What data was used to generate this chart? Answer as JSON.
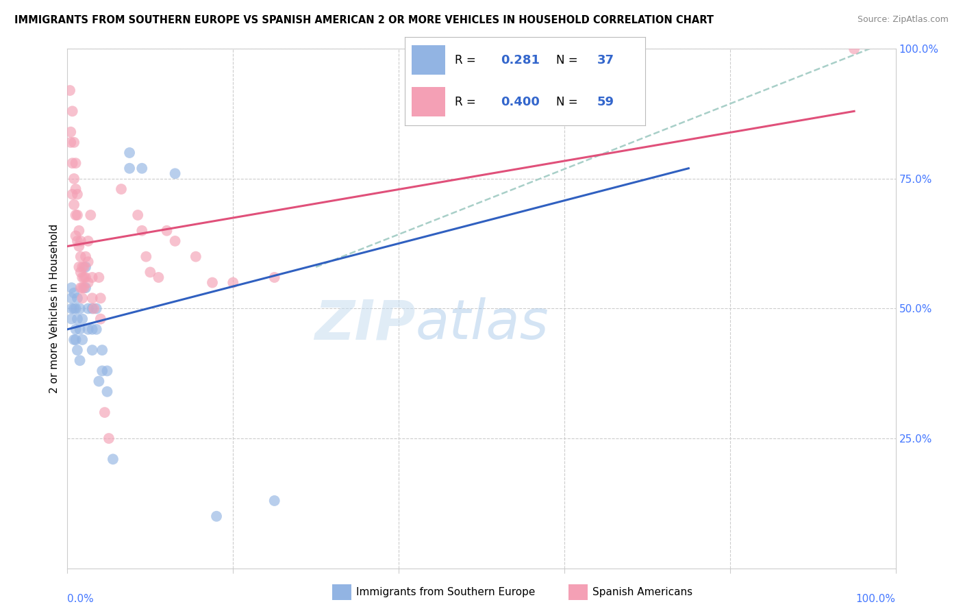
{
  "title": "IMMIGRANTS FROM SOUTHERN EUROPE VS SPANISH AMERICAN 2 OR MORE VEHICLES IN HOUSEHOLD CORRELATION CHART",
  "source": "Source: ZipAtlas.com",
  "ylabel": "2 or more Vehicles in Household",
  "ytick_positions": [
    0.0,
    0.25,
    0.5,
    0.75,
    1.0
  ],
  "xlim": [
    0,
    1.0
  ],
  "ylim": [
    0,
    1.0
  ],
  "watermark_zip": "ZIP",
  "watermark_atlas": "atlas",
  "legend_blue_r": "0.281",
  "legend_blue_n": "37",
  "legend_pink_r": "0.400",
  "legend_pink_n": "59",
  "blue_color": "#92b4e3",
  "pink_color": "#f4a0b5",
  "blue_line_color": "#3060c0",
  "pink_line_color": "#e0507a",
  "dashed_line_color": "#a8cfc8",
  "blue_scatter": [
    [
      0.005,
      0.48
    ],
    [
      0.005,
      0.52
    ],
    [
      0.005,
      0.5
    ],
    [
      0.005,
      0.54
    ],
    [
      0.008,
      0.44
    ],
    [
      0.008,
      0.5
    ],
    [
      0.008,
      0.53
    ],
    [
      0.01,
      0.46
    ],
    [
      0.01,
      0.5
    ],
    [
      0.01,
      0.44
    ],
    [
      0.012,
      0.42
    ],
    [
      0.012,
      0.48
    ],
    [
      0.012,
      0.52
    ],
    [
      0.015,
      0.4
    ],
    [
      0.015,
      0.46
    ],
    [
      0.015,
      0.5
    ],
    [
      0.018,
      0.44
    ],
    [
      0.018,
      0.48
    ],
    [
      0.022,
      0.54
    ],
    [
      0.022,
      0.58
    ],
    [
      0.025,
      0.5
    ],
    [
      0.025,
      0.46
    ],
    [
      0.03,
      0.5
    ],
    [
      0.03,
      0.46
    ],
    [
      0.03,
      0.42
    ],
    [
      0.035,
      0.5
    ],
    [
      0.035,
      0.46
    ],
    [
      0.038,
      0.36
    ],
    [
      0.042,
      0.42
    ],
    [
      0.042,
      0.38
    ],
    [
      0.048,
      0.38
    ],
    [
      0.048,
      0.34
    ],
    [
      0.055,
      0.21
    ],
    [
      0.075,
      0.77
    ],
    [
      0.075,
      0.8
    ],
    [
      0.09,
      0.77
    ],
    [
      0.13,
      0.76
    ],
    [
      0.18,
      0.1
    ],
    [
      0.25,
      0.13
    ]
  ],
  "pink_scatter": [
    [
      0.003,
      0.92
    ],
    [
      0.004,
      0.84
    ],
    [
      0.004,
      0.82
    ],
    [
      0.006,
      0.88
    ],
    [
      0.006,
      0.78
    ],
    [
      0.006,
      0.72
    ],
    [
      0.008,
      0.82
    ],
    [
      0.008,
      0.75
    ],
    [
      0.008,
      0.7
    ],
    [
      0.01,
      0.78
    ],
    [
      0.01,
      0.73
    ],
    [
      0.01,
      0.68
    ],
    [
      0.01,
      0.64
    ],
    [
      0.012,
      0.72
    ],
    [
      0.012,
      0.68
    ],
    [
      0.012,
      0.63
    ],
    [
      0.014,
      0.65
    ],
    [
      0.014,
      0.62
    ],
    [
      0.014,
      0.58
    ],
    [
      0.016,
      0.63
    ],
    [
      0.016,
      0.6
    ],
    [
      0.016,
      0.57
    ],
    [
      0.016,
      0.54
    ],
    [
      0.018,
      0.58
    ],
    [
      0.018,
      0.56
    ],
    [
      0.018,
      0.54
    ],
    [
      0.018,
      0.52
    ],
    [
      0.02,
      0.58
    ],
    [
      0.02,
      0.56
    ],
    [
      0.02,
      0.54
    ],
    [
      0.022,
      0.6
    ],
    [
      0.022,
      0.56
    ],
    [
      0.025,
      0.63
    ],
    [
      0.025,
      0.59
    ],
    [
      0.025,
      0.55
    ],
    [
      0.028,
      0.68
    ],
    [
      0.03,
      0.56
    ],
    [
      0.03,
      0.52
    ],
    [
      0.032,
      0.5
    ],
    [
      0.038,
      0.56
    ],
    [
      0.04,
      0.52
    ],
    [
      0.04,
      0.48
    ],
    [
      0.045,
      0.3
    ],
    [
      0.05,
      0.25
    ],
    [
      0.065,
      0.73
    ],
    [
      0.085,
      0.68
    ],
    [
      0.09,
      0.65
    ],
    [
      0.095,
      0.6
    ],
    [
      0.1,
      0.57
    ],
    [
      0.11,
      0.56
    ],
    [
      0.12,
      0.65
    ],
    [
      0.13,
      0.63
    ],
    [
      0.155,
      0.6
    ],
    [
      0.175,
      0.55
    ],
    [
      0.2,
      0.55
    ],
    [
      0.25,
      0.56
    ],
    [
      0.95,
      1.0
    ]
  ],
  "blue_line_x": [
    0.0,
    0.75
  ],
  "blue_line_y_start": 0.46,
  "blue_line_y_end": 0.77,
  "pink_line_x": [
    0.0,
    0.95
  ],
  "pink_line_y_start": 0.62,
  "pink_line_y_end": 0.88,
  "dashed_line_x": [
    0.3,
    1.0
  ],
  "dashed_line_y_start": 0.58,
  "dashed_line_y_end": 1.02
}
